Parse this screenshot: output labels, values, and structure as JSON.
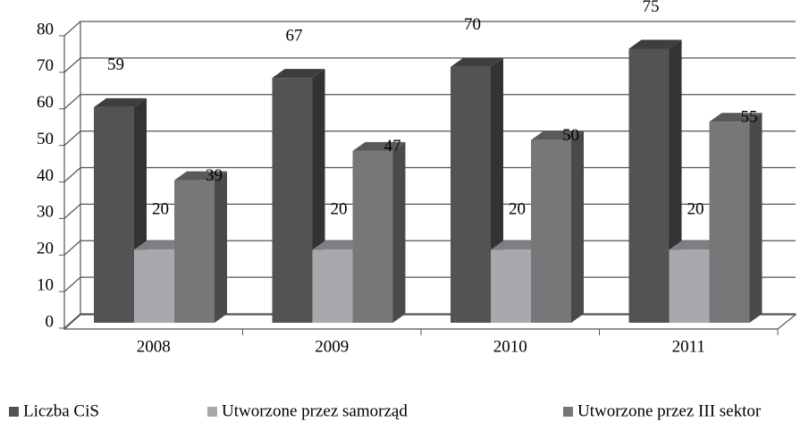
{
  "chart_data": {
    "type": "bar3d",
    "categories": [
      "2008",
      "2009",
      "2010",
      "2011"
    ],
    "series": [
      {
        "name": "Liczba CiS",
        "color": "#535354",
        "values": [
          59,
          67,
          70,
          75
        ]
      },
      {
        "name": "Utworzone przez samorząd",
        "color": "#a7a9ac",
        "values": [
          20,
          20,
          20,
          20
        ]
      },
      {
        "name": "Utworzone przez III sektor",
        "color": "#77777a",
        "values": [
          39,
          47,
          50,
          55
        ]
      }
    ],
    "ylim": [
      0,
      80
    ],
    "yticks": [
      0,
      10,
      20,
      30,
      40,
      50,
      60,
      70,
      80
    ],
    "grid": true,
    "legend": "bottom"
  }
}
